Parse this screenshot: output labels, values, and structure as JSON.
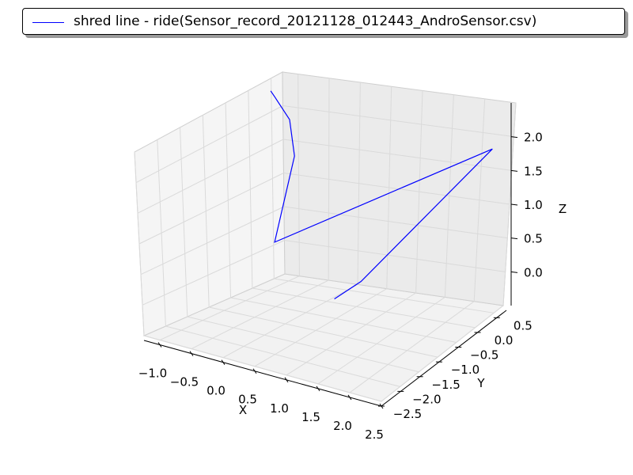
{
  "chart_data": {
    "type": "line",
    "projection": "3d",
    "title": "",
    "xlabel": "X",
    "ylabel": "Y",
    "zlabel": "Z",
    "xlim": [
      -1.25,
      2.5
    ],
    "ylim": [
      -2.5,
      0.75
    ],
    "zlim": [
      -0.5,
      2.5
    ],
    "x_ticks": [
      "−1.0",
      "−0.5",
      "0.0",
      "0.5",
      "1.0",
      "1.5",
      "2.0",
      "2.5"
    ],
    "y_ticks": [
      "−2.5",
      "−2.0",
      "−1.5",
      "−1.0",
      "−0.5",
      "0.0",
      "0.5"
    ],
    "z_ticks": [
      "0.0",
      "0.5",
      "1.0",
      "1.5",
      "2.0"
    ],
    "grid": true,
    "legend_placement": "top",
    "series": [
      {
        "name": "shred line - ride(Sensor_record_20121128_012443_AndroSensor.csv)",
        "color": "#0000ff",
        "x": [
          -0.95,
          -0.85,
          -0.5,
          -0.3,
          -0.25,
          2.4,
          1.45,
          1.15
        ],
        "y": [
          0.3,
          0.25,
          0.05,
          -0.15,
          -0.75,
          0.55,
          -1.3,
          -1.5
        ],
        "z": [
          2.05,
          2.0,
          1.85,
          1.45,
          0.45,
          1.95,
          0.55,
          0.3
        ]
      }
    ]
  }
}
